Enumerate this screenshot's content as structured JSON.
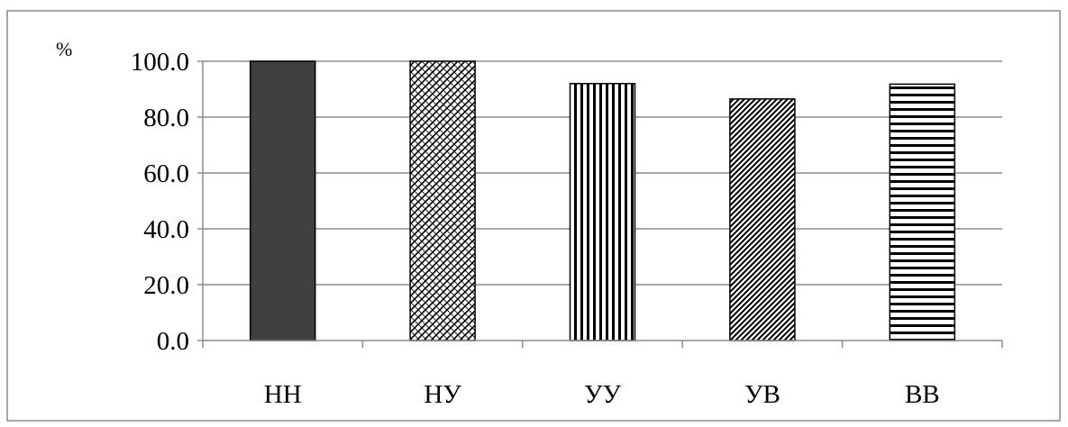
{
  "chart_data": {
    "type": "bar",
    "title": "",
    "xlabel": "",
    "ylabel": "",
    "unit": "%",
    "categories": [
      "НН",
      "НУ",
      "УУ",
      "УВ",
      "ВВ"
    ],
    "values": [
      100.0,
      100.0,
      92.0,
      86.5,
      91.8
    ],
    "ylim": [
      0,
      100
    ],
    "yticks": [
      "0.0",
      "20.0",
      "40.0",
      "60.0",
      "80.0",
      "100.0"
    ],
    "grid": true,
    "legend": "none",
    "bar_patterns": [
      "solid-dark",
      "diagonal-crosshatch",
      "vertical-lines",
      "diagonal-lines",
      "horizontal-lines"
    ]
  },
  "colors": {
    "solid_bar": "#404040",
    "pattern_ink": "#000000",
    "gridline": "#8c8c8c",
    "frame": "#8c8c8c"
  }
}
